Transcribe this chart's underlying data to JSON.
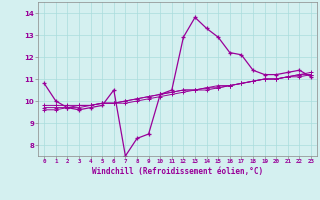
{
  "xlabel": "Windchill (Refroidissement éolien,°C)",
  "hours": [
    0,
    1,
    2,
    3,
    4,
    5,
    6,
    7,
    8,
    9,
    10,
    11,
    12,
    13,
    14,
    15,
    16,
    17,
    18,
    19,
    20,
    21,
    22,
    23
  ],
  "temp": [
    10.8,
    10.0,
    9.7,
    9.6,
    9.7,
    9.8,
    10.5,
    7.5,
    8.3,
    8.5,
    10.3,
    10.5,
    12.9,
    13.8,
    13.3,
    12.9,
    12.2,
    12.1,
    11.4,
    11.2,
    11.2,
    11.3,
    11.4,
    11.1
  ],
  "wc1": [
    9.8,
    9.8,
    9.8,
    9.8,
    9.8,
    9.9,
    9.9,
    9.9,
    10.0,
    10.1,
    10.2,
    10.3,
    10.4,
    10.5,
    10.6,
    10.6,
    10.7,
    10.8,
    10.9,
    11.0,
    11.0,
    11.1,
    11.1,
    11.2
  ],
  "wc2": [
    9.7,
    9.7,
    9.7,
    9.8,
    9.8,
    9.9,
    9.9,
    10.0,
    10.1,
    10.2,
    10.3,
    10.4,
    10.5,
    10.5,
    10.6,
    10.7,
    10.7,
    10.8,
    10.9,
    11.0,
    11.0,
    11.1,
    11.2,
    11.2
  ],
  "wc3": [
    9.6,
    9.6,
    9.7,
    9.7,
    9.8,
    9.9,
    9.9,
    10.0,
    10.1,
    10.2,
    10.3,
    10.4,
    10.5,
    10.5,
    10.5,
    10.6,
    10.7,
    10.8,
    10.9,
    11.0,
    11.0,
    11.1,
    11.2,
    11.3
  ],
  "line_color": "#990099",
  "bg_color": "#d4f0f0",
  "grid_color": "#aadddd",
  "ylim": [
    7.5,
    14.5
  ],
  "xlim": [
    -0.5,
    23.5
  ],
  "yticks": [
    8,
    9,
    10,
    11,
    12,
    13,
    14
  ]
}
